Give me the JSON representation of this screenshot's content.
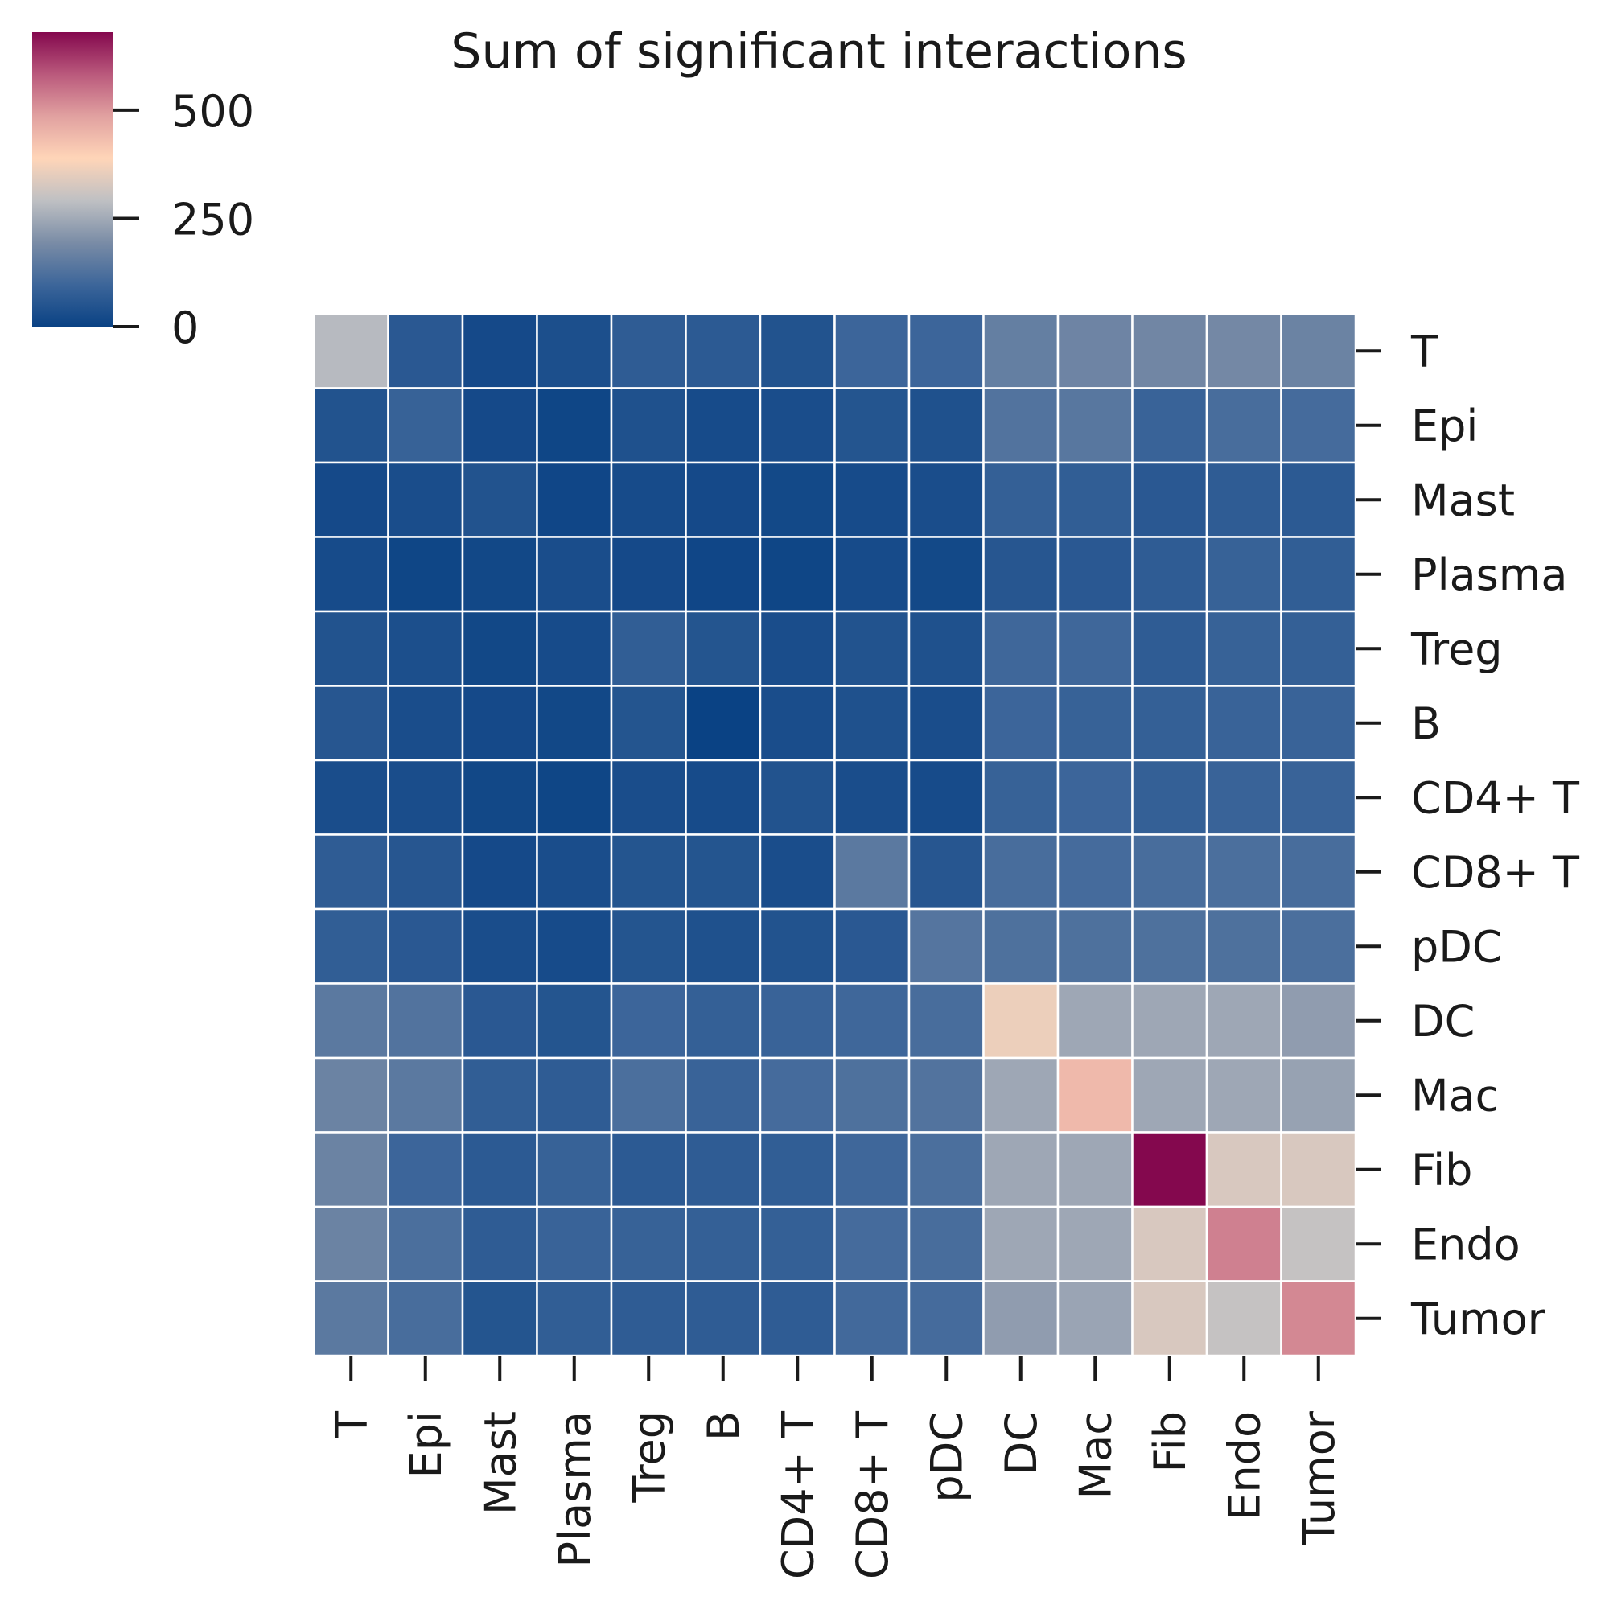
{
  "chart_data": {
    "type": "heatmap",
    "title": "Sum of significant interactions",
    "rows": [
      "T",
      "Epi",
      "Mast",
      "Plasma",
      "Treg",
      "B",
      "CD4+ T",
      "CD8+ T",
      "pDC",
      "DC",
      "Mac",
      "Fib",
      "Endo",
      "Tumor"
    ],
    "columns": [
      "T",
      "Epi",
      "Mast",
      "Plasma",
      "Treg",
      "B",
      "CD4+ T",
      "CD8+ T",
      "pDC",
      "DC",
      "Mac",
      "Fib",
      "Endo",
      "Tumor"
    ],
    "values": [
      [
        280,
        60,
        20,
        35,
        70,
        65,
        45,
        95,
        95,
        160,
        175,
        180,
        185,
        170
      ],
      [
        45,
        85,
        20,
        10,
        40,
        25,
        30,
        50,
        40,
        130,
        140,
        90,
        115,
        110
      ],
      [
        20,
        30,
        45,
        12,
        25,
        20,
        18,
        25,
        30,
        80,
        75,
        60,
        70,
        65
      ],
      [
        25,
        10,
        15,
        30,
        20,
        12,
        10,
        25,
        18,
        55,
        60,
        70,
        85,
        75
      ],
      [
        45,
        35,
        15,
        25,
        75,
        50,
        30,
        45,
        40,
        100,
        100,
        70,
        85,
        80
      ],
      [
        55,
        30,
        20,
        15,
        50,
        0,
        30,
        40,
        30,
        95,
        85,
        80,
        90,
        90
      ],
      [
        30,
        30,
        15,
        10,
        30,
        25,
        45,
        30,
        25,
        85,
        95,
        80,
        90,
        90
      ],
      [
        70,
        55,
        20,
        30,
        50,
        50,
        30,
        145,
        55,
        115,
        110,
        115,
        120,
        115
      ],
      [
        75,
        60,
        30,
        25,
        50,
        40,
        45,
        60,
        135,
        125,
        125,
        125,
        125,
        120
      ],
      [
        145,
        130,
        60,
        50,
        95,
        80,
        90,
        100,
        115,
        360,
        245,
        245,
        245,
        225
      ],
      [
        170,
        145,
        75,
        70,
        120,
        90,
        110,
        125,
        130,
        245,
        440,
        245,
        245,
        235
      ],
      [
        170,
        95,
        65,
        85,
        65,
        70,
        75,
        100,
        120,
        245,
        245,
        680,
        330,
        330
      ],
      [
        170,
        120,
        70,
        90,
        85,
        80,
        80,
        110,
        115,
        245,
        245,
        330,
        530,
        300
      ],
      [
        145,
        115,
        50,
        75,
        70,
        70,
        70,
        105,
        110,
        225,
        240,
        330,
        300,
        520
      ]
    ],
    "colorbar": {
      "min": 0,
      "max": 680,
      "ticks": [
        0,
        250,
        500
      ]
    },
    "colormap": {
      "stops": [
        "#0a4284",
        "#3d669a",
        "#7a8ca6",
        "#bfc0c3",
        "#ffd5b8",
        "#e1a1a0",
        "#ba597c",
        "#84084e"
      ],
      "grid_line_color": "#ffffff"
    },
    "legend_placement": "top-left",
    "x_tick_orientation": "vertical",
    "y_tick_side": "right"
  }
}
